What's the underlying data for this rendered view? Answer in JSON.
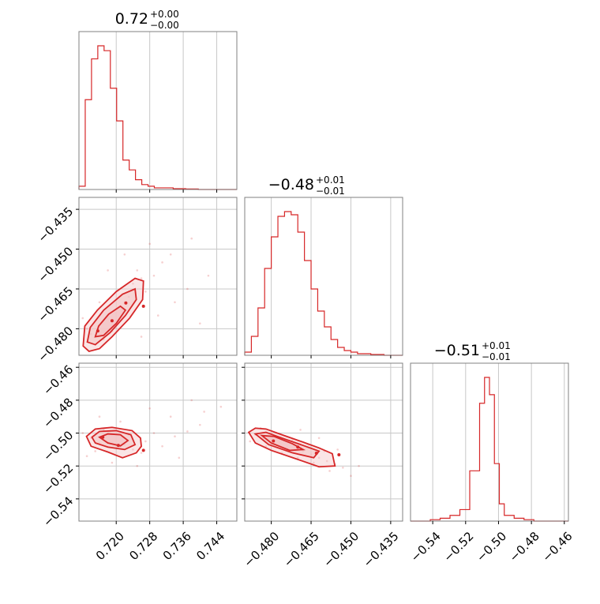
{
  "chart_data": {
    "type": "corner",
    "colors": {
      "accent": "#d62728",
      "contour_fill": "#f3c6c7",
      "frame": "#808080",
      "grid": "#c8c8c8"
    },
    "titles": [
      {
        "main": "0.72",
        "plus": "+0.00",
        "minus": "−0.00"
      },
      {
        "main": "−0.48",
        "plus": "+0.01",
        "minus": "−0.01"
      },
      {
        "main": "−0.51",
        "plus": "+0.01",
        "minus": "−0.01"
      }
    ],
    "params": [
      {
        "range": [
          0.7111,
          0.7488
        ],
        "tick_values": [
          0.72,
          0.728,
          0.736,
          0.744
        ],
        "tick_labels": [
          "0.720",
          "0.728",
          "0.736",
          "0.744"
        ]
      },
      {
        "range": [
          -0.49,
          -0.4305
        ],
        "tick_values": [
          -0.48,
          -0.465,
          -0.45,
          -0.435
        ],
        "tick_labels": [
          "−0.480",
          "−0.465",
          "−0.450",
          "−0.435"
        ]
      },
      {
        "range": [
          -0.5535,
          -0.4575
        ],
        "tick_values": [
          -0.54,
          -0.52,
          -0.5,
          -0.48,
          -0.46
        ],
        "tick_labels": [
          "−0.54",
          "−0.52",
          "−0.50",
          "−0.48",
          "−0.46"
        ]
      }
    ],
    "histograms": [
      {
        "bin_edges": [
          0.7111,
          0.7126,
          0.7141,
          0.7156,
          0.7171,
          0.7186,
          0.7201,
          0.7216,
          0.7231,
          0.7246,
          0.7261,
          0.7276,
          0.7291,
          0.7306,
          0.7321,
          0.7336,
          0.7351,
          0.7366,
          0.7381,
          0.7396,
          0.7411,
          0.7426,
          0.7441,
          0.7456,
          0.7471,
          0.7488
        ],
        "counts": [
          2,
          55,
          80,
          88,
          85,
          62,
          42,
          18,
          12,
          6,
          3,
          2,
          1,
          1,
          1,
          0.5,
          0.5,
          0.3,
          0.3,
          0,
          0,
          0,
          0,
          0,
          0
        ]
      },
      {
        "bin_edges": [
          -0.49,
          -0.4875,
          -0.485,
          -0.4825,
          -0.48,
          -0.4775,
          -0.475,
          -0.4725,
          -0.47,
          -0.4675,
          -0.465,
          -0.4625,
          -0.46,
          -0.4575,
          -0.455,
          -0.4525,
          -0.45,
          -0.4475,
          -0.445,
          -0.4425,
          -0.44,
          -0.4375,
          -0.435,
          -0.4305
        ],
        "counts": [
          2,
          12,
          30,
          55,
          75,
          88,
          91,
          89,
          78,
          60,
          42,
          28,
          18,
          10,
          5,
          3,
          2,
          1,
          1,
          0.5,
          0.5,
          0,
          0
        ]
      },
      {
        "bin_edges": [
          -0.5535,
          -0.5475,
          -0.5415,
          -0.5355,
          -0.5295,
          -0.5235,
          -0.5175,
          -0.5115,
          -0.5085,
          -0.5055,
          -0.5025,
          -0.4995,
          -0.4965,
          -0.4905,
          -0.4845,
          -0.4785,
          -0.4725,
          -0.4665,
          -0.4575
        ],
        "counts": [
          0,
          0,
          1,
          2,
          4,
          8,
          35,
          82,
          100,
          88,
          40,
          12,
          4,
          2,
          1,
          0,
          0,
          0
        ]
      }
    ],
    "scatter_pairs": [
      {
        "x_param": 0,
        "y_param": 1,
        "center": [
          0.7196,
          -0.478
        ],
        "points": [
          [
            0.714,
            -0.482
          ],
          [
            0.716,
            -0.479
          ],
          [
            0.718,
            -0.476
          ],
          [
            0.719,
            -0.481
          ],
          [
            0.721,
            -0.472
          ],
          [
            0.722,
            -0.47
          ],
          [
            0.723,
            -0.468
          ],
          [
            0.717,
            -0.484
          ],
          [
            0.715,
            -0.486
          ],
          [
            0.724,
            -0.463
          ],
          [
            0.726,
            -0.461
          ],
          [
            0.72,
            -0.474
          ],
          [
            0.713,
            -0.48
          ],
          [
            0.727,
            -0.466
          ],
          [
            0.725,
            -0.458
          ],
          [
            0.729,
            -0.46
          ],
          [
            0.731,
            -0.455
          ],
          [
            0.734,
            -0.47
          ],
          [
            0.737,
            -0.465
          ],
          [
            0.74,
            -0.478
          ],
          [
            0.728,
            -0.448
          ],
          [
            0.722,
            -0.452
          ],
          [
            0.718,
            -0.458
          ],
          [
            0.712,
            -0.476
          ],
          [
            0.733,
            -0.452
          ],
          [
            0.738,
            -0.446
          ],
          [
            0.742,
            -0.46
          ],
          [
            0.73,
            -0.475
          ],
          [
            0.726,
            -0.483
          ],
          [
            0.716,
            -0.47
          ]
        ]
      },
      {
        "x_param": 0,
        "y_param": 2,
        "center": [
          0.7198,
          -0.505
        ],
        "points": [
          [
            0.714,
            -0.503
          ],
          [
            0.716,
            -0.506
          ],
          [
            0.718,
            -0.505
          ],
          [
            0.72,
            -0.509
          ],
          [
            0.722,
            -0.507
          ],
          [
            0.724,
            -0.51
          ],
          [
            0.717,
            -0.498
          ],
          [
            0.712,
            -0.5
          ],
          [
            0.726,
            -0.512
          ],
          [
            0.715,
            -0.511
          ],
          [
            0.723,
            -0.501
          ],
          [
            0.727,
            -0.505
          ],
          [
            0.729,
            -0.5
          ],
          [
            0.731,
            -0.508
          ],
          [
            0.734,
            -0.502
          ],
          [
            0.737,
            -0.499
          ],
          [
            0.74,
            -0.495
          ],
          [
            0.733,
            -0.49
          ],
          [
            0.728,
            -0.485
          ],
          [
            0.741,
            -0.487
          ],
          [
            0.745,
            -0.484
          ],
          [
            0.713,
            -0.514
          ],
          [
            0.719,
            -0.518
          ],
          [
            0.725,
            -0.52
          ],
          [
            0.735,
            -0.515
          ],
          [
            0.721,
            -0.493
          ],
          [
            0.716,
            -0.49
          ],
          [
            0.738,
            -0.48
          ]
        ]
      },
      {
        "x_param": 1,
        "y_param": 2,
        "center": [
          -0.477,
          -0.506
        ],
        "points": [
          [
            -0.486,
            -0.501
          ],
          [
            -0.483,
            -0.503
          ],
          [
            -0.48,
            -0.504
          ],
          [
            -0.477,
            -0.506
          ],
          [
            -0.474,
            -0.508
          ],
          [
            -0.471,
            -0.51
          ],
          [
            -0.468,
            -0.511
          ],
          [
            -0.465,
            -0.513
          ],
          [
            -0.462,
            -0.515
          ],
          [
            -0.459,
            -0.517
          ],
          [
            -0.456,
            -0.519
          ],
          [
            -0.453,
            -0.521
          ],
          [
            -0.484,
            -0.497
          ],
          [
            -0.478,
            -0.5
          ],
          [
            -0.472,
            -0.504
          ],
          [
            -0.466,
            -0.507
          ],
          [
            -0.46,
            -0.511
          ],
          [
            -0.482,
            -0.508
          ],
          [
            -0.476,
            -0.512
          ],
          [
            -0.47,
            -0.515
          ],
          [
            -0.464,
            -0.518
          ],
          [
            -0.458,
            -0.523
          ],
          [
            -0.45,
            -0.526
          ],
          [
            -0.447,
            -0.52
          ],
          [
            -0.488,
            -0.505
          ],
          [
            -0.455,
            -0.51
          ],
          [
            -0.462,
            -0.503
          ],
          [
            -0.469,
            -0.498
          ]
        ]
      }
    ],
    "contour_levels": [
      {
        "pair": 0,
        "rings": [
          {
            "fill": true,
            "pts": [
              [
                0.7121,
                -0.4865
              ],
              [
                0.7135,
                -0.4885
              ],
              [
                0.716,
                -0.4875
              ],
              [
                0.719,
                -0.483
              ],
              [
                0.7232,
                -0.476
              ],
              [
                0.7263,
                -0.469
              ],
              [
                0.7265,
                -0.462
              ],
              [
                0.7245,
                -0.461
              ],
              [
                0.72,
                -0.466
              ],
              [
                0.7155,
                -0.473
              ],
              [
                0.7125,
                -0.479
              ]
            ]
          },
          {
            "fill": true,
            "pts": [
              [
                0.7131,
                -0.485
              ],
              [
                0.715,
                -0.486
              ],
              [
                0.7185,
                -0.4815
              ],
              [
                0.7222,
                -0.475
              ],
              [
                0.7248,
                -0.469
              ],
              [
                0.7245,
                -0.465
              ],
              [
                0.7215,
                -0.467
              ],
              [
                0.717,
                -0.473
              ],
              [
                0.7138,
                -0.4795
              ]
            ]
          },
          {
            "fill": true,
            "pts": [
              [
                0.715,
                -0.483
              ],
              [
                0.717,
                -0.4825
              ],
              [
                0.72,
                -0.478
              ],
              [
                0.7222,
                -0.473
              ],
              [
                0.721,
                -0.4715
              ],
              [
                0.7182,
                -0.4745
              ],
              [
                0.7158,
                -0.479
              ]
            ]
          }
        ],
        "dots": [
          [
            0.7156,
            -0.4808
          ],
          [
            0.719,
            -0.477
          ],
          [
            0.7223,
            -0.4703
          ],
          [
            0.7265,
            -0.4715
          ]
        ]
      },
      {
        "pair": 1,
        "rings": [
          {
            "fill": true,
            "pts": [
              [
                0.7129,
                -0.502
              ],
              [
                0.715,
                -0.4975
              ],
              [
                0.719,
                -0.4965
              ],
              [
                0.7238,
                -0.4985
              ],
              [
                0.7258,
                -0.503
              ],
              [
                0.726,
                -0.508
              ],
              [
                0.7248,
                -0.512
              ],
              [
                0.7215,
                -0.515
              ],
              [
                0.718,
                -0.5115
              ],
              [
                0.714,
                -0.508
              ]
            ]
          },
          {
            "fill": true,
            "pts": [
              [
                0.7142,
                -0.5025
              ],
              [
                0.716,
                -0.499
              ],
              [
                0.72,
                -0.4985
              ],
              [
                0.7235,
                -0.501
              ],
              [
                0.7245,
                -0.507
              ],
              [
                0.722,
                -0.51
              ],
              [
                0.718,
                -0.5085
              ],
              [
                0.715,
                -0.506
              ]
            ]
          },
          {
            "fill": true,
            "pts": [
              [
                0.716,
                -0.5025
              ],
              [
                0.718,
                -0.5005
              ],
              [
                0.721,
                -0.501
              ],
              [
                0.7228,
                -0.5045
              ],
              [
                0.721,
                -0.5078
              ],
              [
                0.718,
                -0.506
              ]
            ]
          }
        ],
        "dots": [
          [
            0.7168,
            -0.5025
          ],
          [
            0.7205,
            -0.5075
          ],
          [
            0.7265,
            -0.5105
          ]
        ]
      },
      {
        "pair": 2,
        "rings": [
          {
            "fill": true,
            "pts": [
              [
                -0.4885,
                -0.4995
              ],
              [
                -0.486,
                -0.497
              ],
              [
                -0.482,
                -0.4975
              ],
              [
                -0.476,
                -0.501
              ],
              [
                -0.468,
                -0.5055
              ],
              [
                -0.462,
                -0.509
              ],
              [
                -0.457,
                -0.5125
              ],
              [
                -0.456,
                -0.52
              ],
              [
                -0.462,
                -0.5205
              ],
              [
                -0.47,
                -0.516
              ],
              [
                -0.48,
                -0.5105
              ],
              [
                -0.486,
                -0.506
              ]
            ]
          },
          {
            "fill": true,
            "pts": [
              [
                -0.486,
                -0.5005
              ],
              [
                -0.482,
                -0.4995
              ],
              [
                -0.476,
                -0.503
              ],
              [
                -0.468,
                -0.5075
              ],
              [
                -0.462,
                -0.511
              ],
              [
                -0.464,
                -0.515
              ],
              [
                -0.472,
                -0.512
              ],
              [
                -0.481,
                -0.507
              ]
            ]
          },
          {
            "fill": true,
            "pts": [
              [
                -0.4835,
                -0.5015
              ],
              [
                -0.479,
                -0.502
              ],
              [
                -0.472,
                -0.5065
              ],
              [
                -0.468,
                -0.51
              ],
              [
                -0.473,
                -0.5105
              ],
              [
                -0.48,
                -0.506
              ]
            ]
          }
        ],
        "dots": [
          [
            -0.4792,
            -0.5048
          ],
          [
            -0.47,
            -0.5085
          ],
          [
            -0.463,
            -0.5122
          ],
          [
            -0.4545,
            -0.5132
          ]
        ]
      }
    ]
  }
}
